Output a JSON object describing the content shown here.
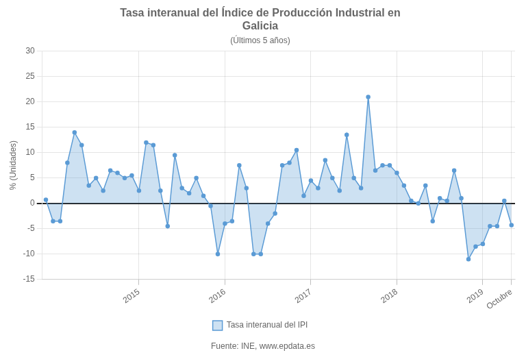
{
  "chart_data": {
    "type": "area",
    "title": "Tasa interanual del Índice de Producción Industrial en\nGalicia",
    "subtitle": "(Últimos 5 años)",
    "y_label": "% (Unidades)",
    "source": "Fuente: INE, www.epdata.es",
    "categories": [
      null,
      null,
      null,
      null,
      null,
      null,
      null,
      null,
      null,
      null,
      null,
      null,
      null,
      "2015",
      null,
      null,
      null,
      null,
      null,
      null,
      null,
      null,
      null,
      null,
      null,
      "2016",
      null,
      null,
      null,
      null,
      null,
      null,
      null,
      null,
      null,
      null,
      null,
      "2017",
      null,
      null,
      null,
      null,
      null,
      null,
      null,
      null,
      null,
      null,
      null,
      "2018",
      null,
      null,
      null,
      null,
      null,
      null,
      null,
      null,
      null,
      null,
      null,
      "2019",
      null,
      null,
      null,
      "Octubre"
    ],
    "series": [
      {
        "name": "Tasa interanual del IPI",
        "color": "#5b9bd5",
        "values": [
          0.7,
          -3.5,
          -3.5,
          8.0,
          14.0,
          11.5,
          3.5,
          5.0,
          2.5,
          6.5,
          6.0,
          5.0,
          5.5,
          2.5,
          12.0,
          11.5,
          2.5,
          -4.5,
          9.5,
          3.0,
          2.0,
          5.0,
          1.5,
          -0.5,
          -10.0,
          -4.0,
          -3.5,
          7.5,
          3.0,
          -10.0,
          -10.0,
          -4.0,
          -2.0,
          7.5,
          8.0,
          10.5,
          1.5,
          4.5,
          3.0,
          8.5,
          5.0,
          2.5,
          13.5,
          5.0,
          3.0,
          21.0,
          6.5,
          7.5,
          7.5,
          6.0,
          3.5,
          0.5,
          0.0,
          3.5,
          -3.5,
          1.0,
          0.5,
          6.5,
          1.0,
          -11.0,
          -8.5,
          -8.0,
          -4.5,
          -4.5,
          0.5,
          -4.3
        ]
      }
    ],
    "ylim": [
      -15,
      30
    ],
    "yticks": [
      -15,
      -10,
      -5,
      0,
      5,
      10,
      15,
      20,
      25,
      30
    ],
    "grid": true,
    "legend": "bottom"
  }
}
